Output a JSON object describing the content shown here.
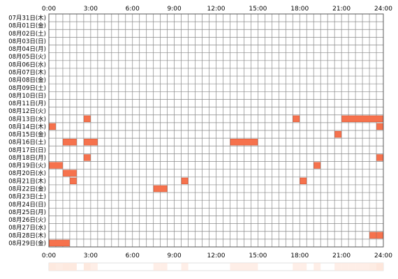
{
  "chart_data": {
    "type": "heatmap",
    "x_ticks": [
      "0:00",
      "3:00",
      "6:00",
      "9:00",
      "12:00",
      "15:00",
      "18:00",
      "21:00",
      "24:00"
    ],
    "x_range_hours": [
      0,
      24
    ],
    "bin_hours": 0.5,
    "grid": true,
    "colors": {
      "bar": "#f6724d",
      "bar_edge": "#e05a35",
      "summary": "#fde6db",
      "grid": "#888888"
    },
    "rows": [
      {
        "label": "07月31日(木)",
        "intervals": []
      },
      {
        "label": "08月01日(金)",
        "intervals": []
      },
      {
        "label": "08月02日(土)",
        "intervals": []
      },
      {
        "label": "08月03日(日)",
        "intervals": []
      },
      {
        "label": "08月04日(月)",
        "intervals": []
      },
      {
        "label": "08月05日(火)",
        "intervals": []
      },
      {
        "label": "08月06日(水)",
        "intervals": []
      },
      {
        "label": "08月07日(木)",
        "intervals": []
      },
      {
        "label": "08月08日(金)",
        "intervals": []
      },
      {
        "label": "08月09日(土)",
        "intervals": []
      },
      {
        "label": "08月10日(日)",
        "intervals": []
      },
      {
        "label": "08月11日(月)",
        "intervals": []
      },
      {
        "label": "08月12日(火)",
        "intervals": []
      },
      {
        "label": "08月13日(水)",
        "intervals": [
          [
            2.5,
            3.0
          ],
          [
            17.5,
            18.0
          ],
          [
            21.0,
            24.0
          ]
        ]
      },
      {
        "label": "08月14日(木)",
        "intervals": [
          [
            0.0,
            0.5
          ],
          [
            23.5,
            24.0
          ]
        ]
      },
      {
        "label": "08月15日(金)",
        "intervals": [
          [
            20.5,
            21.0
          ]
        ]
      },
      {
        "label": "08月16日(土)",
        "intervals": [
          [
            1.0,
            2.0
          ],
          [
            2.5,
            3.5
          ],
          [
            13.0,
            15.0
          ]
        ]
      },
      {
        "label": "08月17日(日)",
        "intervals": []
      },
      {
        "label": "08月18日(月)",
        "intervals": [
          [
            2.5,
            3.0
          ],
          [
            23.5,
            24.0
          ]
        ]
      },
      {
        "label": "08月19日(火)",
        "intervals": [
          [
            0.0,
            1.0
          ],
          [
            19.0,
            19.5
          ]
        ]
      },
      {
        "label": "08月20日(水)",
        "intervals": [
          [
            1.0,
            2.0
          ]
        ]
      },
      {
        "label": "08月21日(木)",
        "intervals": [
          [
            1.5,
            2.0
          ],
          [
            9.5,
            10.0
          ],
          [
            18.0,
            18.5
          ]
        ]
      },
      {
        "label": "08月22日(金)",
        "intervals": [
          [
            7.5,
            8.5
          ]
        ]
      },
      {
        "label": "08月23日(土)",
        "intervals": []
      },
      {
        "label": "08月24日(日)",
        "intervals": []
      },
      {
        "label": "08月25日(月)",
        "intervals": []
      },
      {
        "label": "08月26日(火)",
        "intervals": []
      },
      {
        "label": "08月27日(水)",
        "intervals": []
      },
      {
        "label": "08月28日(木)",
        "intervals": [
          [
            23.0,
            23.5
          ],
          [
            23.5,
            24.0
          ]
        ]
      },
      {
        "label": "08月29日(金)",
        "intervals": [
          [
            0.0,
            1.5
          ]
        ]
      }
    ]
  }
}
